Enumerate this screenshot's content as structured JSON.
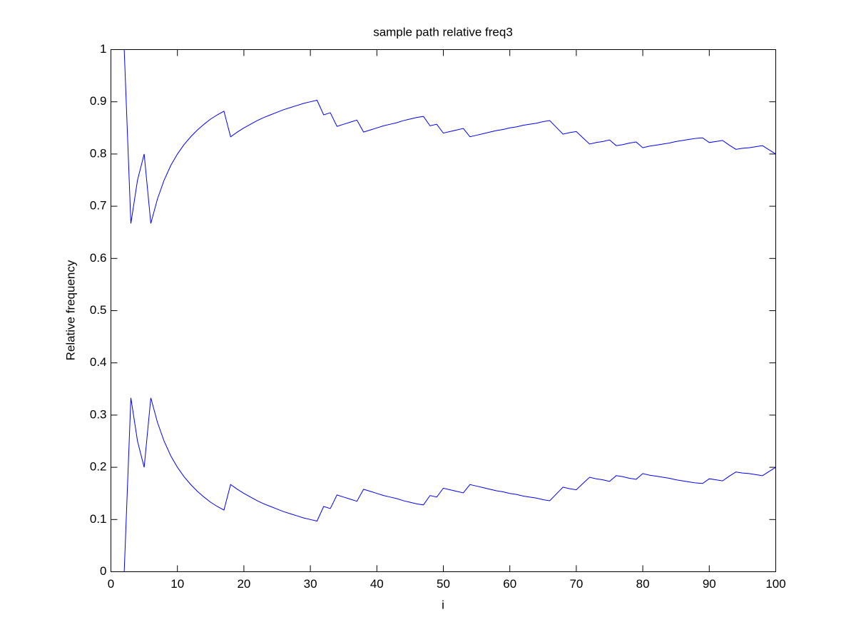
{
  "chart_data": {
    "type": "line",
    "title": "sample path relative freq3",
    "xlabel": "i",
    "ylabel": "Relative frequency",
    "x": [
      2,
      3,
      4,
      5,
      6,
      7,
      8,
      9,
      10,
      11,
      12,
      13,
      14,
      15,
      16,
      17,
      18,
      19,
      20,
      21,
      22,
      23,
      24,
      25,
      26,
      27,
      28,
      29,
      30,
      31,
      32,
      33,
      34,
      35,
      36,
      37,
      38,
      39,
      40,
      41,
      42,
      43,
      44,
      45,
      46,
      47,
      48,
      49,
      50,
      51,
      52,
      53,
      54,
      55,
      56,
      57,
      58,
      59,
      60,
      61,
      62,
      63,
      64,
      65,
      66,
      67,
      68,
      69,
      70,
      71,
      72,
      73,
      74,
      75,
      76,
      77,
      78,
      79,
      80,
      81,
      82,
      83,
      84,
      85,
      86,
      87,
      88,
      89,
      90,
      91,
      92,
      93,
      94,
      95,
      96,
      97,
      98,
      99,
      100
    ],
    "series": [
      {
        "color": "#0000ff",
        "values": [
          1,
          0.667,
          0.75,
          0.8,
          0.667,
          0.714,
          0.75,
          0.778,
          0.8,
          0.818,
          0.833,
          0.846,
          0.857,
          0.867,
          0.875,
          0.882,
          0.833,
          0.842,
          0.85,
          0.857,
          0.864,
          0.87,
          0.875,
          0.88,
          0.885,
          0.889,
          0.893,
          0.897,
          0.9,
          0.903,
          0.875,
          0.879,
          0.853,
          0.857,
          0.861,
          0.865,
          0.842,
          0.846,
          0.85,
          0.854,
          0.857,
          0.86,
          0.864,
          0.867,
          0.87,
          0.872,
          0.854,
          0.857,
          0.84,
          0.843,
          0.846,
          0.849,
          0.833,
          0.836,
          0.839,
          0.842,
          0.845,
          0.847,
          0.85,
          0.852,
          0.855,
          0.857,
          0.859,
          0.862,
          0.864,
          0.851,
          0.838,
          0.841,
          0.843,
          0.831,
          0.819,
          0.822,
          0.824,
          0.827,
          0.816,
          0.818,
          0.821,
          0.823,
          0.812,
          0.815,
          0.817,
          0.819,
          0.821,
          0.824,
          0.826,
          0.828,
          0.83,
          0.831,
          0.822,
          0.824,
          0.826,
          0.817,
          0.809,
          0.811,
          0.812,
          0.814,
          0.816,
          0.808,
          0.8
        ]
      },
      {
        "color": "#0000ff",
        "values": [
          0,
          0.333,
          0.25,
          0.2,
          0.333,
          0.286,
          0.25,
          0.222,
          0.2,
          0.182,
          0.167,
          0.154,
          0.143,
          0.133,
          0.125,
          0.118,
          0.167,
          0.158,
          0.15,
          0.143,
          0.136,
          0.13,
          0.125,
          0.12,
          0.115,
          0.111,
          0.107,
          0.103,
          0.1,
          0.097,
          0.125,
          0.121,
          0.147,
          0.143,
          0.139,
          0.135,
          0.158,
          0.154,
          0.15,
          0.146,
          0.143,
          0.14,
          0.136,
          0.133,
          0.13,
          0.128,
          0.146,
          0.143,
          0.16,
          0.157,
          0.154,
          0.151,
          0.167,
          0.164,
          0.161,
          0.158,
          0.155,
          0.153,
          0.15,
          0.148,
          0.145,
          0.143,
          0.141,
          0.138,
          0.136,
          0.149,
          0.162,
          0.159,
          0.157,
          0.169,
          0.181,
          0.178,
          0.176,
          0.173,
          0.184,
          0.182,
          0.179,
          0.177,
          0.188,
          0.185,
          0.183,
          0.181,
          0.179,
          0.176,
          0.174,
          0.172,
          0.17,
          0.169,
          0.178,
          0.176,
          0.174,
          0.183,
          0.191,
          0.189,
          0.188,
          0.186,
          0.184,
          0.192,
          0.2
        ]
      }
    ],
    "xlim": [
      0,
      100
    ],
    "ylim": [
      0,
      1
    ],
    "xticks": [
      0,
      10,
      20,
      30,
      40,
      50,
      60,
      70,
      80,
      90,
      100
    ],
    "yticks": [
      0,
      0.1,
      0.2,
      0.3,
      0.4,
      0.5,
      0.6,
      0.7,
      0.8,
      0.9,
      1
    ],
    "grid": false
  }
}
